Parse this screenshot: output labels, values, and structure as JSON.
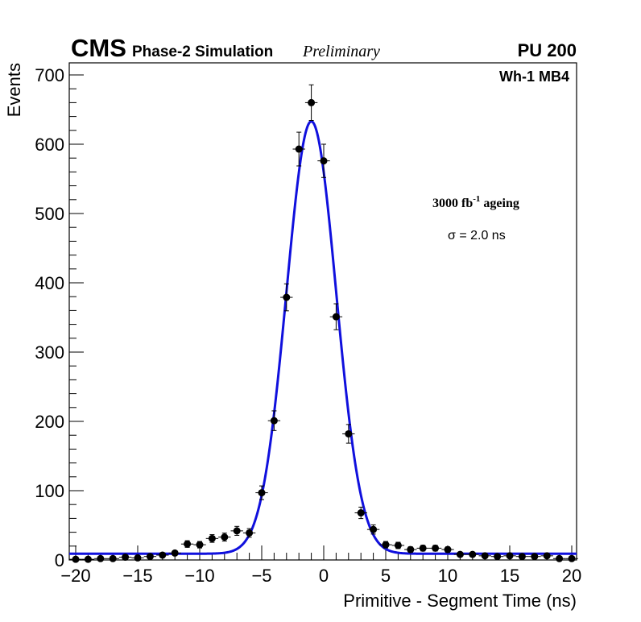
{
  "header": {
    "experiment": "CMS",
    "simulation": "Phase-2 Simulation",
    "status": "Preliminary",
    "pileup": "PU 200"
  },
  "annotations": {
    "region": "Wh-1 MB4",
    "ageing_value": "3000 fb",
    "ageing_exp": "-1",
    "ageing_word": " ageing",
    "sigma_symbol": "σ",
    "sigma_text": " = 2.0 ns"
  },
  "chart_data": {
    "type": "scatter",
    "title": "",
    "xlabel": "Primitive - Segment Time (ns)",
    "ylabel": "Events",
    "xlim": [
      -20,
      20
    ],
    "ylim": [
      0,
      720
    ],
    "xticks": [
      -20,
      -15,
      -10,
      -5,
      0,
      5,
      10,
      15,
      20
    ],
    "yticks": [
      0,
      100,
      200,
      300,
      400,
      500,
      600,
      700
    ],
    "bin_width": 1,
    "series": [
      {
        "name": "Simulation",
        "style": "points-with-errors",
        "color": "#000000",
        "x": [
          -20,
          -19,
          -18,
          -17,
          -16,
          -15,
          -14,
          -13,
          -12,
          -11,
          -10,
          -9,
          -8,
          -7,
          -6,
          -5,
          -4,
          -3,
          -2,
          -1,
          0,
          1,
          2,
          3,
          4,
          5,
          6,
          7,
          8,
          9,
          10,
          11,
          12,
          13,
          14,
          15,
          16,
          17,
          18,
          19,
          20
        ],
        "y": [
          1,
          1,
          2,
          2,
          4,
          3,
          5,
          7,
          10,
          23,
          22,
          31,
          33,
          42,
          39,
          97,
          201,
          379,
          593,
          660,
          576,
          351,
          182,
          68,
          44,
          22,
          21,
          15,
          17,
          17,
          15,
          8,
          8,
          6,
          5,
          6,
          5,
          5,
          6,
          2,
          2
        ]
      },
      {
        "name": "Gaussian fit",
        "style": "line",
        "color": "#1010dd",
        "fit": {
          "amplitude": 624,
          "mean": -1.0,
          "sigma": 2.0,
          "baseline": 9
        }
      }
    ]
  }
}
